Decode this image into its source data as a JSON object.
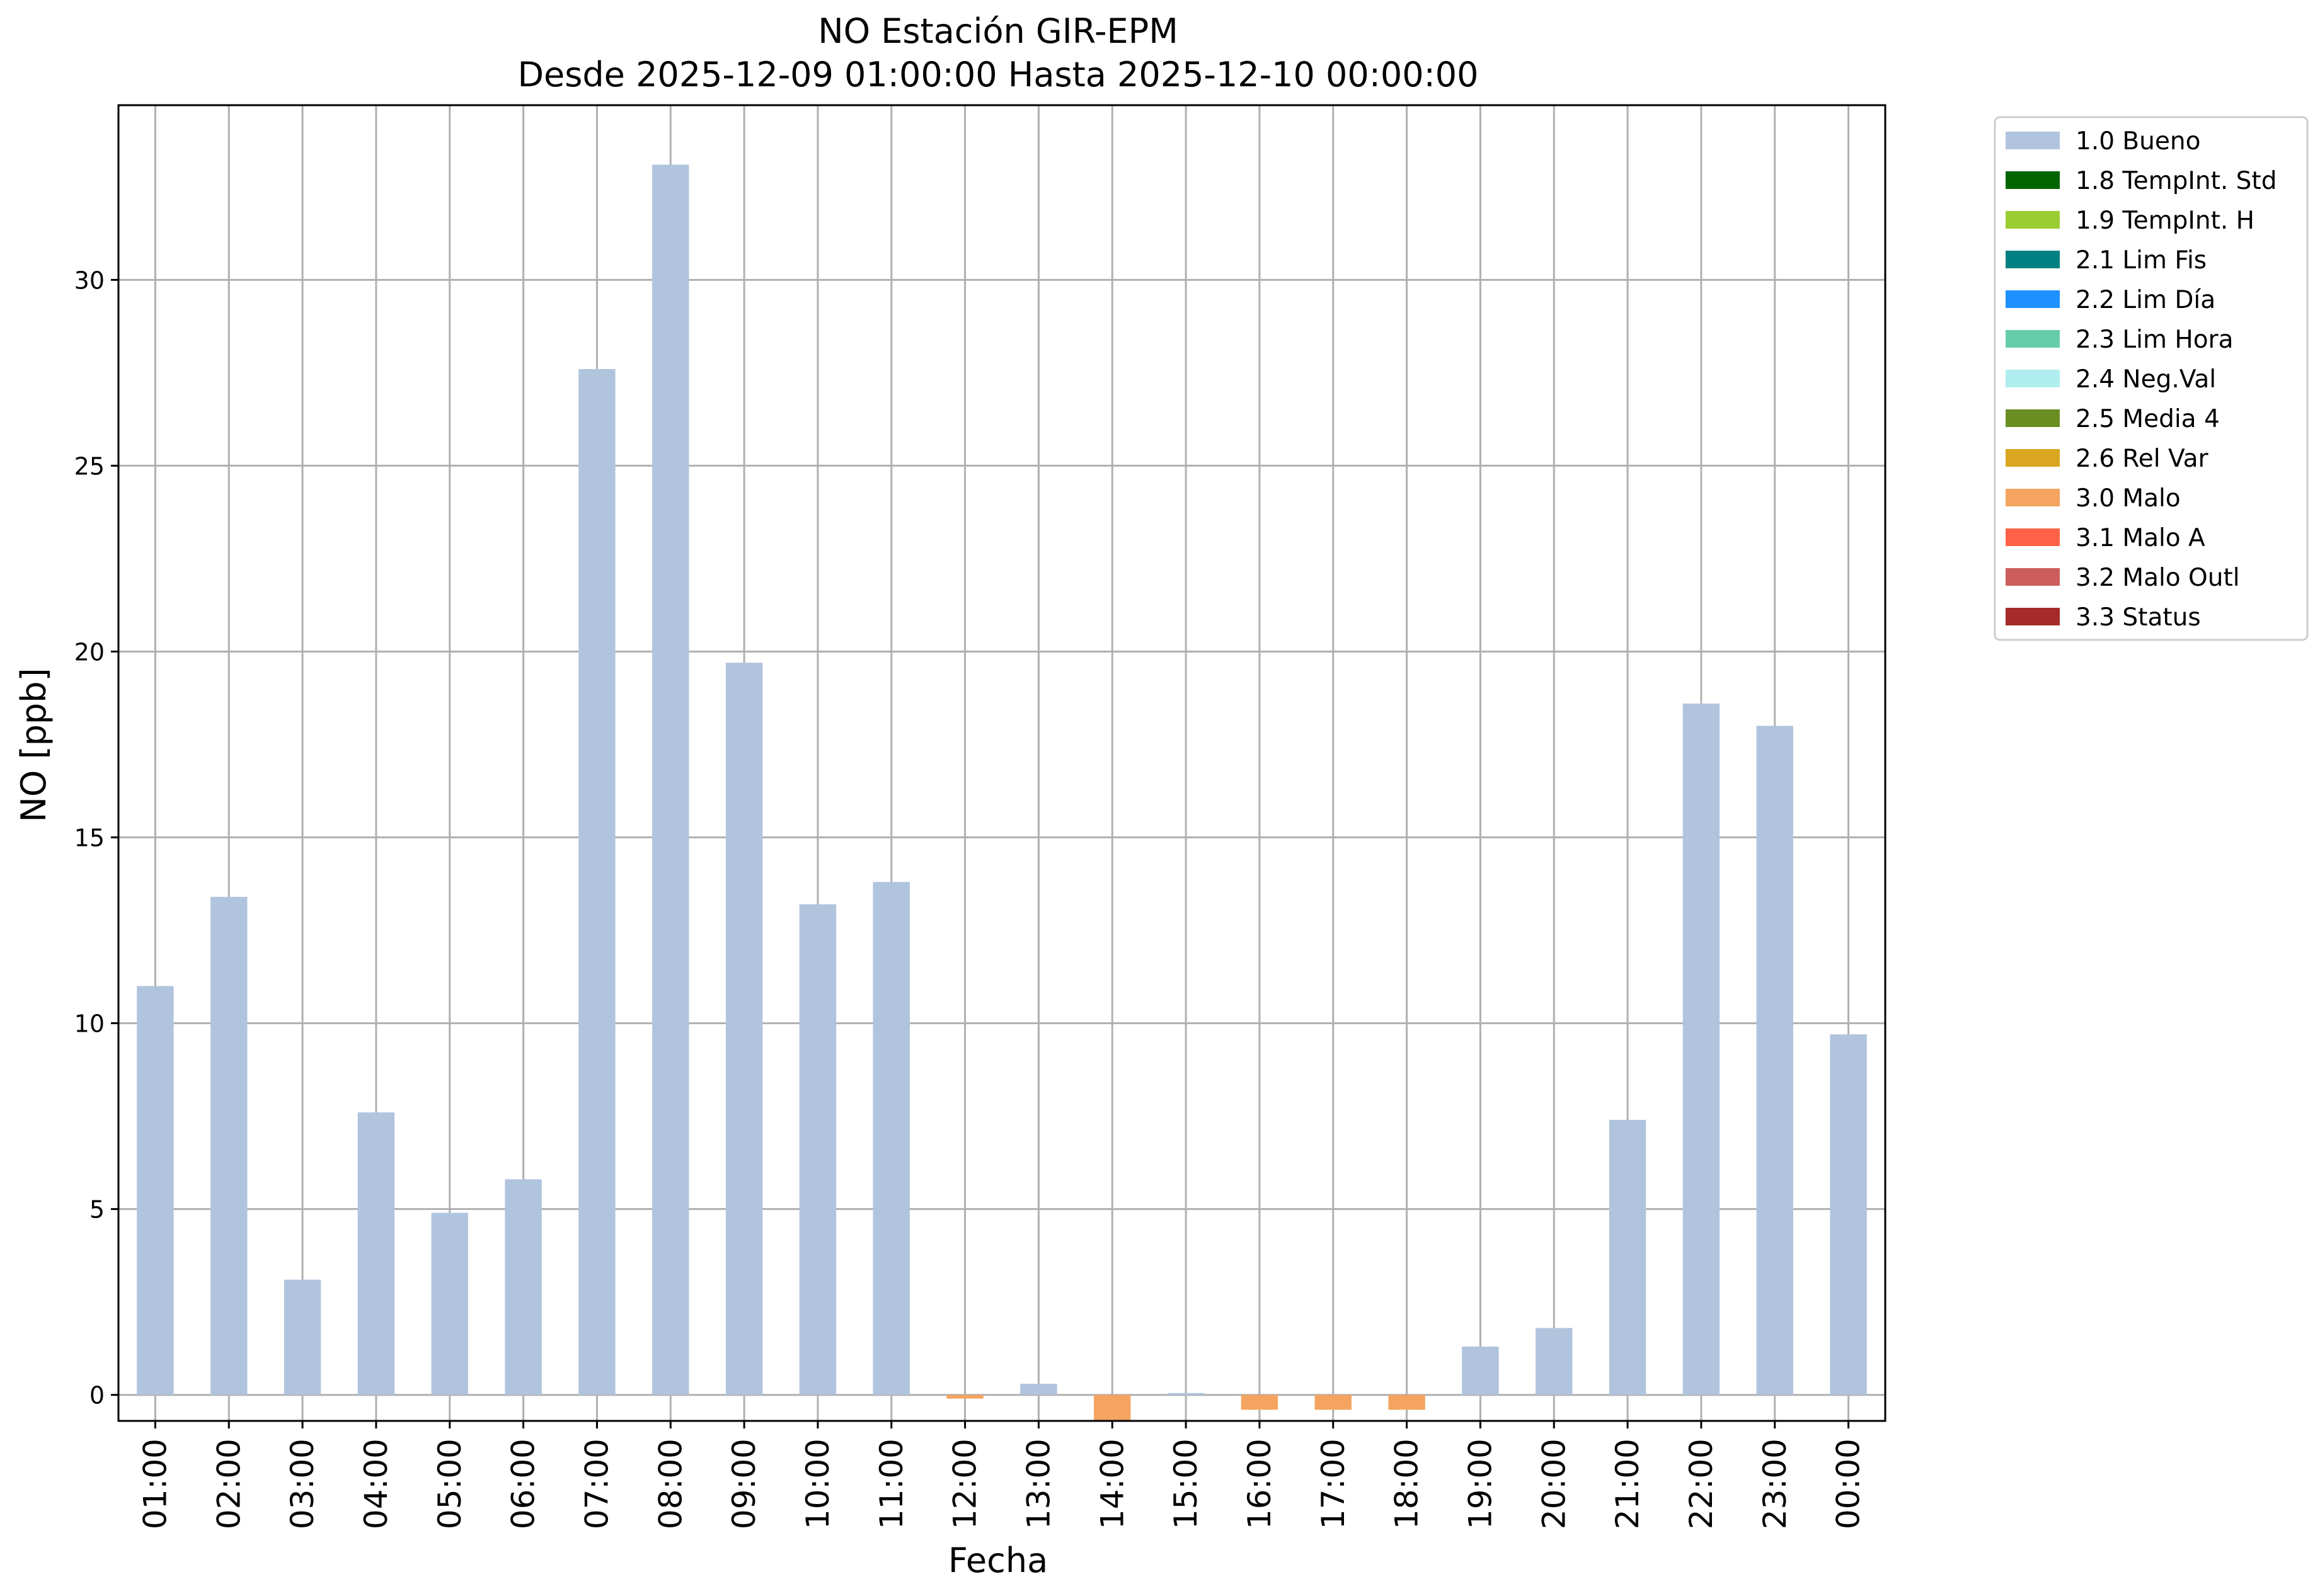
{
  "chart_data": {
    "type": "bar",
    "title": "NO Estación GIR-EPM",
    "subtitle": "Desde 2025-12-09 01:00:00 Hasta 2025-12-10 00:00:00",
    "xlabel": "Fecha",
    "ylabel": "NO [ppb]",
    "ylim": [
      -0.7,
      34.7
    ],
    "yticks": [
      0,
      5,
      10,
      15,
      20,
      25,
      30
    ],
    "grid": true,
    "legend_position": "outside-right-top",
    "categories": [
      "01:00",
      "02:00",
      "03:00",
      "04:00",
      "05:00",
      "06:00",
      "07:00",
      "08:00",
      "09:00",
      "10:00",
      "11:00",
      "12:00",
      "13:00",
      "14:00",
      "15:00",
      "16:00",
      "17:00",
      "18:00",
      "19:00",
      "20:00",
      "21:00",
      "22:00",
      "23:00",
      "00:00"
    ],
    "series": [
      {
        "name": "1.0 Bueno",
        "color": "#b0c4de",
        "values": [
          11.0,
          13.4,
          3.1,
          7.6,
          4.9,
          5.8,
          27.6,
          33.1,
          19.7,
          13.2,
          13.8,
          0,
          0.3,
          0,
          0.05,
          0,
          0,
          0,
          1.3,
          1.8,
          7.4,
          18.6,
          18.0,
          9.7
        ]
      },
      {
        "name": "3.0 Malo",
        "color": "#f4a460",
        "values": [
          0,
          0,
          0,
          0,
          0,
          0,
          0,
          0,
          0,
          0,
          0,
          -0.1,
          0,
          -0.7,
          0,
          -0.4,
          -0.4,
          -0.4,
          0,
          0,
          0,
          0,
          0,
          0
        ]
      }
    ],
    "legend": [
      {
        "label": "1.0 Bueno",
        "color": "#b0c4de"
      },
      {
        "label": "1.8 TempInt. Std",
        "color": "#006400"
      },
      {
        "label": "1.9 TempInt. H",
        "color": "#9acd32"
      },
      {
        "label": "2.1 Lim Fis",
        "color": "#008080"
      },
      {
        "label": "2.2 Lim Día",
        "color": "#1e90ff"
      },
      {
        "label": "2.3 Lim Hora",
        "color": "#66cdaa"
      },
      {
        "label": "2.4 Neg.Val",
        "color": "#afeeee"
      },
      {
        "label": "2.5 Media 4",
        "color": "#6b8e23"
      },
      {
        "label": "2.6 Rel Var",
        "color": "#daa520"
      },
      {
        "label": "3.0 Malo",
        "color": "#f4a460"
      },
      {
        "label": "3.1 Malo A",
        "color": "#ff6347"
      },
      {
        "label": "3.2 Malo Outl",
        "color": "#cd5c5c"
      },
      {
        "label": "3.3 Status",
        "color": "#a52a2a"
      }
    ]
  }
}
